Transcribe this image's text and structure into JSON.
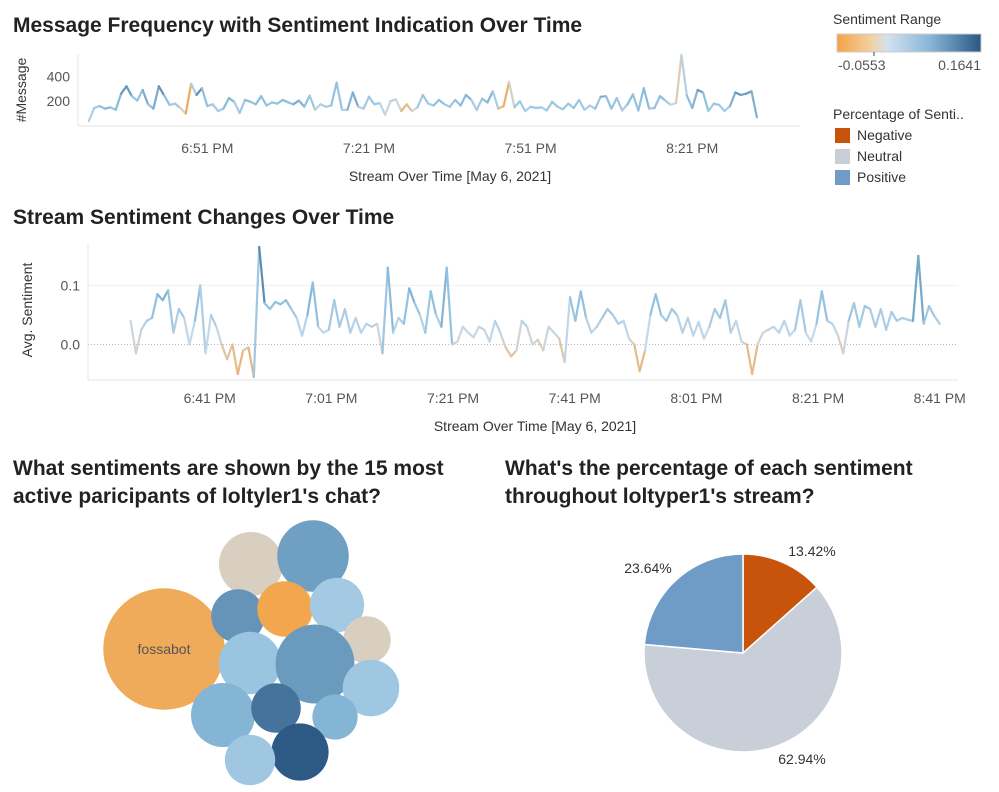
{
  "chart_data": [
    {
      "type": "line",
      "title": "Message Frequency with Sentiment Indication Over Time",
      "xlabel": "Stream Over Time [May 6, 2021]",
      "ylabel": "#Message",
      "yticks": [
        "200",
        "400"
      ],
      "ylim": [
        0,
        580
      ],
      "xticks": [
        "6:51 PM",
        "7:21 PM",
        "7:51 PM",
        "8:21 PM"
      ],
      "xtick_minutes": [
        411,
        441,
        471,
        501
      ],
      "xlim_minutes": [
        387,
        521
      ],
      "x_start_minutes": 389,
      "x_step_minutes": 1,
      "values": [
        40,
        145,
        160,
        140,
        150,
        130,
        260,
        320,
        240,
        205,
        290,
        175,
        140,
        320,
        245,
        170,
        180,
        145,
        100,
        340,
        250,
        305,
        160,
        175,
        120,
        140,
        225,
        195,
        105,
        210,
        195,
        175,
        240,
        165,
        190,
        180,
        210,
        190,
        175,
        205,
        155,
        245,
        130,
        175,
        155,
        165,
        350,
        130,
        130,
        270,
        155,
        140,
        235,
        175,
        185,
        90,
        200,
        215,
        120,
        175,
        120,
        150,
        250,
        180,
        165,
        210,
        175,
        155,
        210,
        165,
        250,
        210,
        130,
        220,
        190,
        280,
        140,
        160,
        355,
        150,
        200,
        120,
        155,
        145,
        150,
        125,
        195,
        155,
        135,
        180,
        145,
        210,
        130,
        165,
        140,
        235,
        240,
        140,
        225,
        125,
        175,
        255,
        125,
        305,
        140,
        145,
        240,
        205,
        170,
        185,
        570,
        245,
        145,
        290,
        270,
        120,
        180,
        170,
        120,
        160,
        270,
        250,
        260,
        280,
        70
      ],
      "sentiment": [
        0.03,
        0.05,
        0.06,
        0.08,
        0.07,
        0.05,
        0.1,
        0.12,
        0.09,
        0.02,
        0.11,
        0.07,
        0.06,
        0.12,
        0.1,
        0.04,
        0.06,
        0.05,
        -0.04,
        -0.05,
        0.14,
        0.09,
        0.05,
        0.06,
        0.04,
        0.05,
        0.1,
        0.06,
        0.03,
        0.08,
        0.07,
        0.06,
        0.09,
        0.05,
        0.07,
        0.06,
        0.08,
        0.07,
        0.06,
        0.12,
        0.04,
        0.09,
        0.02,
        0.05,
        0.04,
        0.05,
        0.08,
        0.04,
        0.03,
        0.13,
        0.05,
        0.03,
        0.07,
        0.05,
        0.06,
        0.0,
        0.02,
        0.05,
        -0.02,
        -0.04,
        0.0,
        0.03,
        0.07,
        0.05,
        0.05,
        0.08,
        0.06,
        0.04,
        0.07,
        0.06,
        0.09,
        0.07,
        0.02,
        0.08,
        0.06,
        0.1,
        -0.01,
        -0.05,
        -0.03,
        0.04,
        0.07,
        0.03,
        0.05,
        0.06,
        0.05,
        0.04,
        0.07,
        0.05,
        0.05,
        0.06,
        0.05,
        0.07,
        0.03,
        0.05,
        0.04,
        0.08,
        0.09,
        0.05,
        0.08,
        0.03,
        0.06,
        0.09,
        0.04,
        0.1,
        0.05,
        0.05,
        0.08,
        0.07,
        0.03,
        0.01,
        -0.02,
        0.09,
        0.05,
        0.11,
        0.1,
        0.04,
        0.06,
        0.06,
        0.04,
        0.05,
        0.12,
        0.1,
        0.1,
        0.11,
        0.06
      ],
      "color_legend": {
        "title": "Sentiment Range",
        "min_label": "-0.0553",
        "max_label": "0.1641",
        "min": -0.0553,
        "max": 0.1641
      }
    },
    {
      "type": "line",
      "title": "Stream Sentiment Changes Over Time",
      "xlabel": "Stream Over Time [May 6, 2021]",
      "ylabel": "Avg. Sentiment",
      "yticks": [
        "0.0",
        "0.1"
      ],
      "ytick_values": [
        0,
        0.1
      ],
      "ylim": [
        -0.06,
        0.17
      ],
      "xticks": [
        "6:41 PM",
        "7:01 PM",
        "7:21 PM",
        "7:41 PM",
        "8:01 PM",
        "8:21 PM",
        "8:41 PM"
      ],
      "xtick_minutes": [
        401,
        421,
        441,
        461,
        481,
        501,
        521
      ],
      "xlim_minutes": [
        381,
        524
      ],
      "x_start_minutes": 388,
      "x_step_minutes": 1,
      "values": [
        0.04,
        -0.015,
        0.025,
        0.04,
        0.045,
        0.085,
        0.075,
        0.092,
        0.02,
        0.06,
        0.045,
        0.0,
        0.04,
        0.1,
        -0.015,
        0.05,
        0.03,
        0.0,
        -0.025,
        0.0,
        -0.05,
        -0.01,
        -0.005,
        -0.055,
        0.165,
        0.07,
        0.06,
        0.072,
        0.068,
        0.075,
        0.06,
        0.045,
        0.015,
        0.05,
        0.105,
        0.03,
        0.02,
        0.025,
        0.075,
        0.03,
        0.06,
        0.02,
        0.045,
        0.02,
        0.035,
        0.03,
        0.035,
        -0.015,
        0.13,
        0.02,
        0.045,
        0.035,
        0.095,
        0.07,
        0.05,
        0.02,
        0.09,
        0.05,
        0.03,
        0.13,
        0.0,
        0.005,
        0.03,
        0.02,
        0.012,
        0.03,
        0.025,
        0.005,
        0.04,
        0.02,
        -0.005,
        -0.02,
        -0.01,
        0.04,
        0.03,
        0.0,
        0.008,
        -0.01,
        0.03,
        0.02,
        0.01,
        -0.03,
        0.08,
        0.04,
        0.09,
        0.045,
        0.02,
        0.03,
        0.045,
        0.06,
        0.05,
        0.035,
        0.04,
        0.01,
        0.0,
        -0.045,
        -0.01,
        0.05,
        0.085,
        0.05,
        0.04,
        0.06,
        0.05,
        0.02,
        0.045,
        0.015,
        0.038,
        0.01,
        0.03,
        0.06,
        0.045,
        0.075,
        0.02,
        0.04,
        0.005,
        0.0,
        -0.05,
        0.0,
        0.02,
        0.025,
        0.03,
        0.02,
        0.04,
        0.015,
        0.025,
        0.075,
        0.02,
        0.005,
        0.035,
        0.09,
        0.04,
        0.035,
        0.015,
        -0.015,
        0.04,
        0.07,
        0.03,
        0.065,
        0.06,
        0.03,
        0.06,
        0.025,
        0.055,
        0.04,
        0.045,
        0.042,
        0.04,
        0.15,
        0.035,
        0.065,
        0.048,
        0.035
      ]
    },
    {
      "type": "bubble",
      "title_line1": "What sentiments are shown by the 15 most",
      "title_line2": "active paricipants of loltyler1's chat?",
      "bubbles": [
        {
          "label": "fossabot",
          "size": 3.6,
          "sentiment": -0.045
        },
        {
          "label": "",
          "size": 1.0,
          "sentiment": 0.0
        },
        {
          "label": "",
          "size": 1.25,
          "sentiment": 0.1
        },
        {
          "label": "",
          "size": 0.7,
          "sentiment": 0.11
        },
        {
          "label": "",
          "size": 0.75,
          "sentiment": -0.05
        },
        {
          "label": "",
          "size": 0.72,
          "sentiment": 0.05
        },
        {
          "label": "",
          "size": 0.55,
          "sentiment": 0.0
        },
        {
          "label": "",
          "size": 0.95,
          "sentiment": 0.06
        },
        {
          "label": "",
          "size": 1.52,
          "sentiment": 0.105
        },
        {
          "label": "",
          "size": 0.78,
          "sentiment": 0.055
        },
        {
          "label": "",
          "size": 1.0,
          "sentiment": 0.08
        },
        {
          "label": "",
          "size": 0.6,
          "sentiment": 0.14
        },
        {
          "label": "",
          "size": 0.5,
          "sentiment": 0.08
        },
        {
          "label": "",
          "size": 0.8,
          "sentiment": 0.163
        },
        {
          "label": "",
          "size": 0.62,
          "sentiment": 0.055
        }
      ]
    },
    {
      "type": "pie",
      "title_line1": "What's the percentage of each sentiment",
      "title_line2": "throughout loltyper1's stream?",
      "legend_title": "Percentage of Senti..",
      "slices": [
        {
          "label": "Negative",
          "value": 13.42,
          "text": "13.42%",
          "color": "#c8530a"
        },
        {
          "label": "Neutral",
          "value": 62.94,
          "text": "62.94%",
          "color": "#c9cfd8"
        },
        {
          "label": "Positive",
          "value": 23.64,
          "text": "23.64%",
          "color": "#6f9cc6"
        }
      ]
    }
  ],
  "colors": {
    "neg": "#f5a343",
    "neutral": "#d6d1c4",
    "pos_light": "#8fc0df",
    "pos_dark": "#2b5883"
  }
}
